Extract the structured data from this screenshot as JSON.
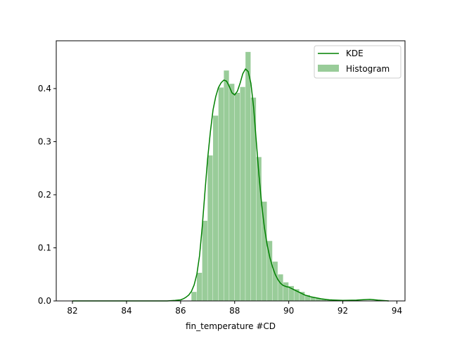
{
  "chart_data": {
    "type": "histogram+kde",
    "xlabel": "fin_temperature #CD",
    "ylabel": "",
    "xlim": [
      81.4,
      94.3
    ],
    "ylim": [
      0,
      0.49
    ],
    "x_ticks": [
      "82",
      "84",
      "86",
      "88",
      "90",
      "92",
      "94"
    ],
    "y_ticks": [
      "0.0",
      "0.1",
      "0.2",
      "0.3",
      "0.4"
    ],
    "grid": false,
    "legend_position": "top-right",
    "legend": [
      {
        "label": "KDE",
        "kind": "line",
        "color": "#008000"
      },
      {
        "label": "Histogram",
        "kind": "patch",
        "color": "#99cc99"
      }
    ],
    "histogram": {
      "color": "#99cc99",
      "bins": [
        {
          "x0": 86.4,
          "x1": 86.6,
          "value": 0.017
        },
        {
          "x0": 86.6,
          "x1": 86.8,
          "value": 0.053
        },
        {
          "x0": 86.8,
          "x1": 87.0,
          "value": 0.151
        },
        {
          "x0": 87.0,
          "x1": 87.2,
          "value": 0.274
        },
        {
          "x0": 87.2,
          "x1": 87.4,
          "value": 0.349
        },
        {
          "x0": 87.4,
          "x1": 87.6,
          "value": 0.402
        },
        {
          "x0": 87.6,
          "x1": 87.8,
          "value": 0.434
        },
        {
          "x0": 87.8,
          "x1": 88.0,
          "value": 0.409
        },
        {
          "x0": 88.0,
          "x1": 88.2,
          "value": 0.392
        },
        {
          "x0": 88.2,
          "x1": 88.4,
          "value": 0.403
        },
        {
          "x0": 88.4,
          "x1": 88.6,
          "value": 0.469
        },
        {
          "x0": 88.6,
          "x1": 88.8,
          "value": 0.383
        },
        {
          "x0": 88.8,
          "x1": 89.0,
          "value": 0.271
        },
        {
          "x0": 89.0,
          "x1": 89.2,
          "value": 0.187
        },
        {
          "x0": 89.2,
          "x1": 89.4,
          "value": 0.113
        },
        {
          "x0": 89.4,
          "x1": 89.6,
          "value": 0.074
        },
        {
          "x0": 89.6,
          "x1": 89.8,
          "value": 0.05
        },
        {
          "x0": 89.8,
          "x1": 90.0,
          "value": 0.035
        },
        {
          "x0": 90.0,
          "x1": 90.2,
          "value": 0.028
        },
        {
          "x0": 90.2,
          "x1": 90.4,
          "value": 0.022
        },
        {
          "x0": 90.4,
          "x1": 90.6,
          "value": 0.017
        },
        {
          "x0": 90.6,
          "x1": 90.8,
          "value": 0.011
        },
        {
          "x0": 90.8,
          "x1": 91.0,
          "value": 0.007
        },
        {
          "x0": 91.0,
          "x1": 91.2,
          "value": 0.005
        },
        {
          "x0": 91.2,
          "x1": 91.4,
          "value": 0.004
        },
        {
          "x0": 91.4,
          "x1": 91.6,
          "value": 0.003
        },
        {
          "x0": 91.6,
          "x1": 91.8,
          "value": 0.002
        },
        {
          "x0": 91.8,
          "x1": 92.0,
          "value": 0.002
        },
        {
          "x0": 92.0,
          "x1": 92.2,
          "value": 0.001
        }
      ]
    },
    "kde": {
      "color": "#008000",
      "x": [
        82.0,
        85.5,
        85.8,
        86.0,
        86.1,
        86.2,
        86.3,
        86.4,
        86.5,
        86.6,
        86.7,
        86.8,
        86.9,
        87.0,
        87.1,
        87.2,
        87.3,
        87.4,
        87.5,
        87.6,
        87.7,
        87.8,
        87.9,
        88.0,
        88.1,
        88.2,
        88.3,
        88.4,
        88.5,
        88.6,
        88.7,
        88.8,
        88.9,
        89.0,
        89.1,
        89.2,
        89.3,
        89.4,
        89.5,
        89.6,
        89.7,
        89.8,
        89.9,
        90.0,
        90.2,
        90.4,
        90.6,
        90.8,
        91.0,
        91.2,
        91.5,
        92.0,
        92.5,
        93.0,
        93.3,
        93.7
      ],
      "y": [
        0.0,
        0.0,
        0.001,
        0.002,
        0.004,
        0.007,
        0.011,
        0.018,
        0.03,
        0.05,
        0.085,
        0.14,
        0.205,
        0.268,
        0.318,
        0.36,
        0.385,
        0.402,
        0.411,
        0.416,
        0.414,
        0.404,
        0.392,
        0.388,
        0.395,
        0.41,
        0.428,
        0.437,
        0.432,
        0.41,
        0.365,
        0.3,
        0.236,
        0.181,
        0.138,
        0.106,
        0.082,
        0.064,
        0.05,
        0.04,
        0.033,
        0.029,
        0.027,
        0.026,
        0.021,
        0.016,
        0.011,
        0.008,
        0.006,
        0.004,
        0.002,
        0.001,
        0.0015,
        0.003,
        0.0015,
        0.0
      ]
    }
  }
}
